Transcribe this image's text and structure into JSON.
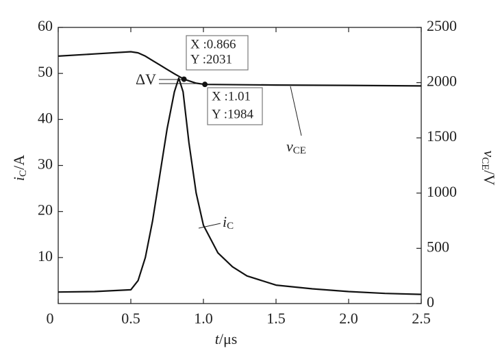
{
  "chart_data": {
    "type": "line",
    "x_label": [
      "t",
      "/μs"
    ],
    "y_label": [
      "i",
      "C",
      "/A"
    ],
    "y2_label": [
      "v",
      "CE",
      "/V"
    ],
    "xlim": [
      0,
      2.5
    ],
    "xticks": [
      0,
      0.5,
      {
        "value": 1.0,
        "label": "1.0"
      },
      1.5,
      {
        "value": 2.0,
        "label": "2.0"
      },
      2.5
    ],
    "ylim": [
      0,
      60
    ],
    "yticks": [
      10,
      20,
      30,
      40,
      50,
      60
    ],
    "y2lim": [
      0,
      2500
    ],
    "y2ticks": [
      0,
      500,
      1000,
      1500,
      2000,
      2500
    ],
    "grid": false,
    "series": [
      {
        "name": [
          "i",
          "C"
        ],
        "color": "#111111",
        "axis": "y",
        "x": [
          0,
          0.25,
          0.5,
          0.55,
          0.6,
          0.65,
          0.7,
          0.75,
          0.8,
          0.83,
          0.86,
          0.9,
          0.95,
          1.0,
          1.1,
          1.2,
          1.3,
          1.5,
          1.75,
          2.0,
          2.25,
          2.5
        ],
        "values": [
          2.5,
          2.6,
          3,
          5,
          10,
          18,
          28,
          38,
          46,
          49,
          46,
          35,
          24,
          17,
          11,
          8,
          6,
          4,
          3.2,
          2.6,
          2.2,
          2.0
        ]
      },
      {
        "name": [
          "v",
          "CE"
        ],
        "color": "#111111",
        "axis": "y2",
        "x": [
          0,
          0.25,
          0.5,
          0.55,
          0.6,
          0.65,
          0.7,
          0.75,
          0.8,
          0.866,
          0.95,
          1.01,
          1.5,
          2.0,
          2.5
        ],
        "values": [
          2240,
          2260,
          2280,
          2270,
          2240,
          2200,
          2160,
          2120,
          2080,
          2031,
          1995,
          1984,
          1978,
          1975,
          1970
        ]
      }
    ],
    "datatips": [
      {
        "x": 0.866,
        "y": 2031,
        "x_text": "X :0.866",
        "y_text": "Y :2031"
      },
      {
        "x": 1.01,
        "y": 1984,
        "x_text": "X :1.01",
        "y_text": "Y :1984"
      }
    ],
    "delta_label": "ΔV"
  }
}
